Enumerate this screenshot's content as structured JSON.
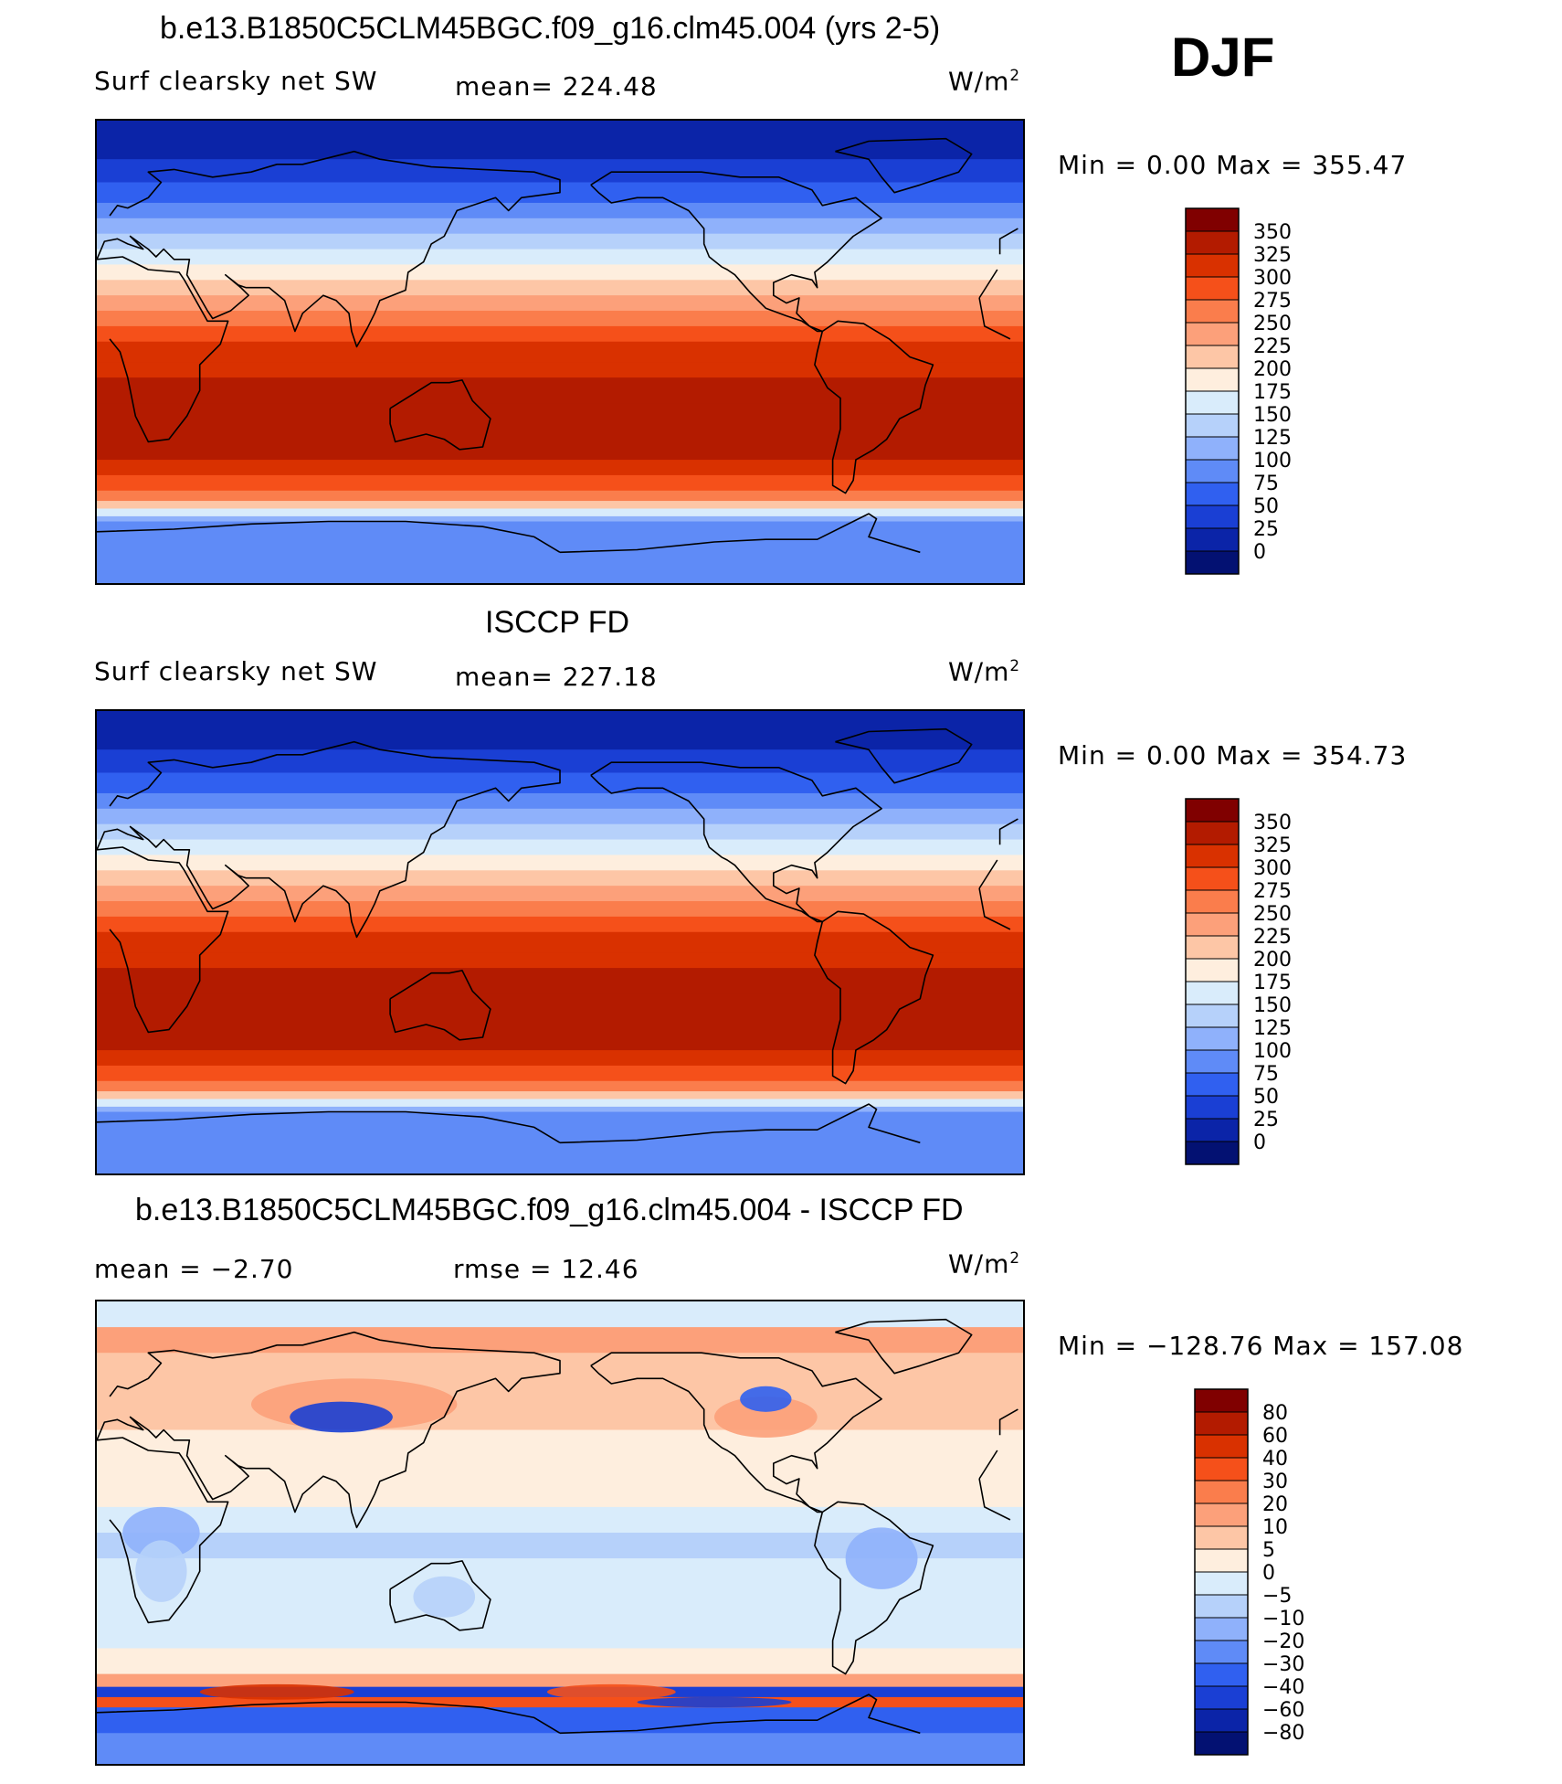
{
  "season": "DJF",
  "chart_data": [
    {
      "type": "heatmap",
      "panel": "model",
      "title": "b.e13.B1850C5CLM45BGC.f09_g16.clm45.004 (yrs 2-5)",
      "left_label": "Surf clearsky net SW",
      "center_label": "mean= 224.48",
      "units": "W/m",
      "units_sup": "2",
      "minmax": "Min =     0.00 Max = 355.47",
      "min": 0.0,
      "max": 355.47,
      "mean": 224.48,
      "colorbar_levels": [
        "350",
        "325",
        "300",
        "275",
        "250",
        "225",
        "200",
        "175",
        "150",
        "125",
        "100",
        "75",
        "50",
        "25",
        "0"
      ],
      "colorbar_colors": [
        "#800000",
        "#b31b00",
        "#d93100",
        "#f5501a",
        "#fa7d4c",
        "#fca07a",
        "#fdc6a6",
        "#feeede",
        "#d9ecfb",
        "#b6d1fa",
        "#8fb1fb",
        "#5f8bf7",
        "#3060f0",
        "#1a3fd4",
        "#0b24a8",
        "#031172"
      ]
    },
    {
      "type": "heatmap",
      "panel": "observations",
      "title": "ISCCP FD",
      "left_label": "Surf clearsky net SW",
      "center_label": "mean= 227.18",
      "units": "W/m",
      "units_sup": "2",
      "minmax": "Min =     0.00 Max = 354.73",
      "min": 0.0,
      "max": 354.73,
      "mean": 227.18,
      "colorbar_levels": [
        "350",
        "325",
        "300",
        "275",
        "250",
        "225",
        "200",
        "175",
        "150",
        "125",
        "100",
        "75",
        "50",
        "25",
        "0"
      ],
      "colorbar_colors": [
        "#800000",
        "#b31b00",
        "#d93100",
        "#f5501a",
        "#fa7d4c",
        "#fca07a",
        "#fdc6a6",
        "#feeede",
        "#d9ecfb",
        "#b6d1fa",
        "#8fb1fb",
        "#5f8bf7",
        "#3060f0",
        "#1a3fd4",
        "#0b24a8",
        "#031172"
      ]
    },
    {
      "type": "heatmap",
      "panel": "difference",
      "title": "b.e13.B1850C5CLM45BGC.f09_g16.clm45.004 - ISCCP FD",
      "left_label": "mean =    −2.70",
      "center_label": "rmse =    12.46",
      "units": "W/m",
      "units_sup": "2",
      "minmax": "Min = −128.76 Max = 157.08",
      "min": -128.76,
      "max": 157.08,
      "mean": -2.7,
      "rmse": 12.46,
      "colorbar_levels": [
        "80",
        "60",
        "40",
        "30",
        "20",
        "10",
        "5",
        "0",
        "−5",
        "−10",
        "−20",
        "−30",
        "−40",
        "−60",
        "−80"
      ],
      "colorbar_colors": [
        "#800000",
        "#b31b00",
        "#d93100",
        "#f5501a",
        "#fa7d4c",
        "#fca07a",
        "#fdc6a6",
        "#feeede",
        "#d9ecfb",
        "#b6d1fa",
        "#8fb1fb",
        "#5f8bf7",
        "#3060f0",
        "#1a3fd4",
        "#0b24a8",
        "#031172"
      ]
    }
  ]
}
